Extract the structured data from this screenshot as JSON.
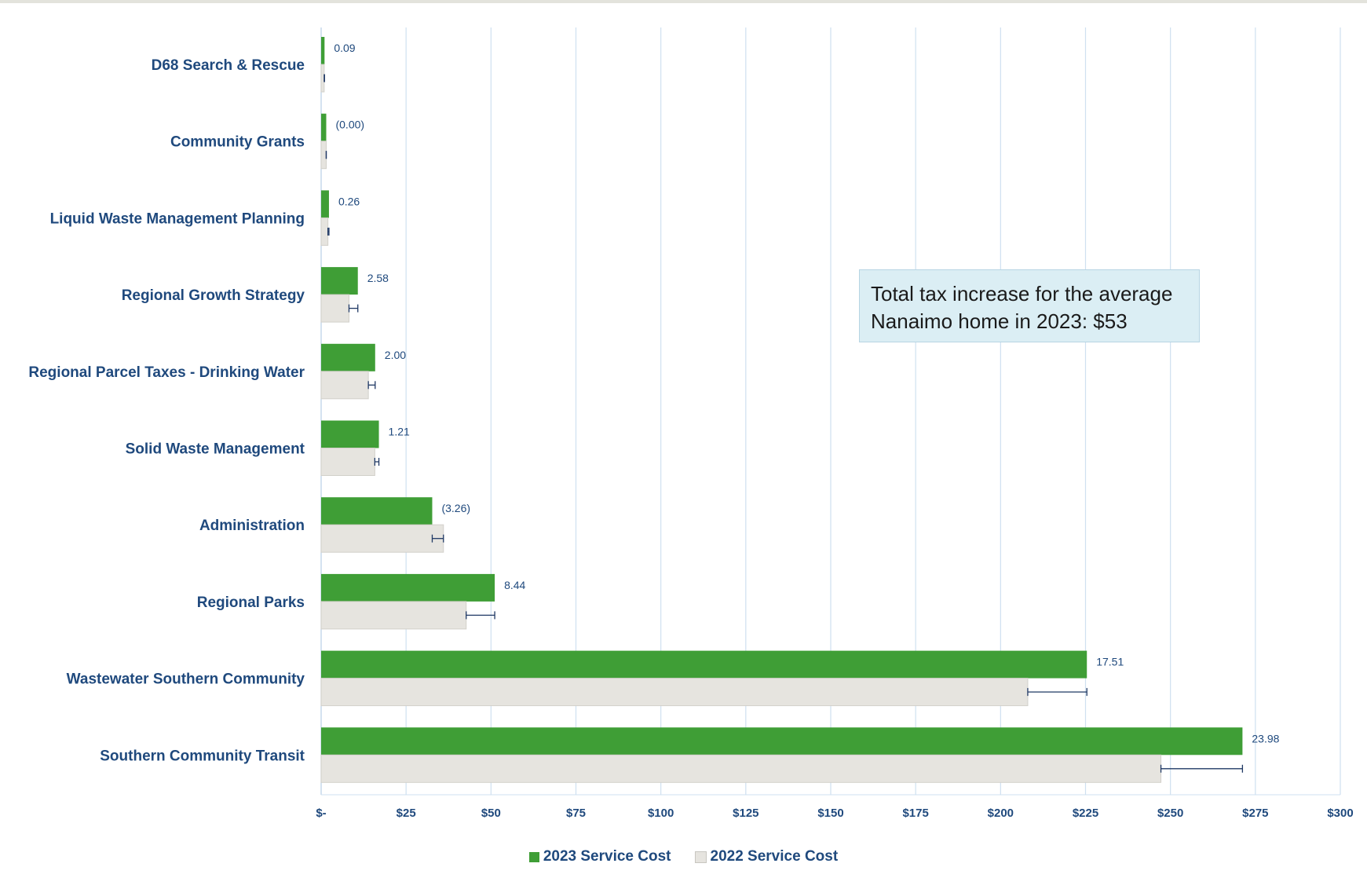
{
  "chart_data": {
    "type": "bar",
    "orientation": "horizontal",
    "categories": [
      "D68 Search & Rescue",
      "Community Grants",
      "Liquid Waste Management Planning",
      "Regional Growth Strategy",
      "Regional Parcel Taxes - Drinking Water",
      "Solid Waste Management",
      "Administration",
      "Regional Parks",
      "Wastewater Southern Community",
      "Southern Community Transit"
    ],
    "series": [
      {
        "name": "2023 Service Cost",
        "color": "#3f9e36",
        "values": [
          1.0,
          1.5,
          2.3,
          10.8,
          15.9,
          17.0,
          32.7,
          51.1,
          225.4,
          271.2
        ]
      },
      {
        "name": "2022 Service Cost",
        "color": "#e6e4df",
        "values": [
          0.9,
          1.5,
          2.0,
          8.2,
          13.9,
          15.8,
          36.0,
          42.7,
          208.0,
          247.2
        ]
      }
    ],
    "data_labels": [
      "0.09",
      "(0.00)",
      "0.26",
      "2.58",
      "2.00",
      "1.21",
      "(3.26)",
      "8.44",
      "17.51",
      "23.98"
    ],
    "xlim": [
      0,
      300
    ],
    "x_ticks": [
      0,
      25,
      50,
      75,
      100,
      125,
      150,
      175,
      200,
      225,
      250,
      275,
      300
    ],
    "x_tick_labels": [
      "$-",
      "$25",
      "$50",
      "$75",
      "$100",
      "$125",
      "$150",
      "$175",
      "$200",
      "$225",
      "$250",
      "$275",
      "$300"
    ],
    "xlabel": "",
    "ylabel": "",
    "grid": "vertical",
    "legend_position": "bottom-center",
    "error_bars": "2022 to 2023 change"
  },
  "annotation": {
    "line1": "Total tax increase for the average",
    "line2": "Nanaimo home in 2023:  $53"
  },
  "legend": {
    "items": [
      {
        "label": "2023 Service Cost",
        "color": "#3f9e36"
      },
      {
        "label": "2022 Service Cost",
        "color": "#e6e4df"
      }
    ]
  }
}
